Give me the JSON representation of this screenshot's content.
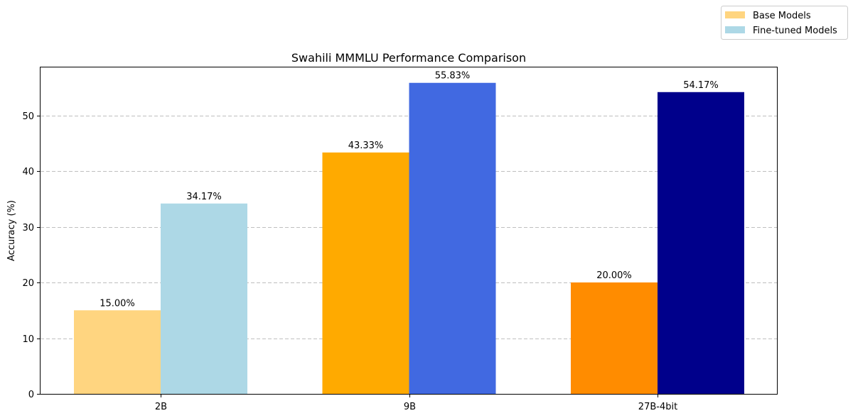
{
  "chart_data": {
    "type": "bar",
    "title": "Swahili MMMLU Performance Comparison",
    "xlabel": "",
    "ylabel": "Accuracy (%)",
    "categories": [
      "2B",
      "9B",
      "27B-4bit"
    ],
    "ylim": [
      0,
      58.6
    ],
    "yticks": [
      0,
      10,
      20,
      30,
      40,
      50
    ],
    "grid": "y-dashed",
    "legend_position": "top-right (outside plot)",
    "series": [
      {
        "name": "Base Models",
        "values": [
          15.0,
          43.33,
          20.0
        ],
        "labels": [
          "15.00%",
          "43.33%",
          "20.00%"
        ],
        "colors": [
          "#ffd580",
          "#ffaa00",
          "#ff8c00"
        ],
        "legend_color": "#ffd580"
      },
      {
        "name": "Fine-tuned Models",
        "values": [
          34.17,
          55.83,
          54.17
        ],
        "labels": [
          "34.17%",
          "55.83%",
          "54.17%"
        ],
        "colors": [
          "#add8e6",
          "#4169e1",
          "#00008b"
        ],
        "legend_color": "#add8e6"
      }
    ]
  }
}
